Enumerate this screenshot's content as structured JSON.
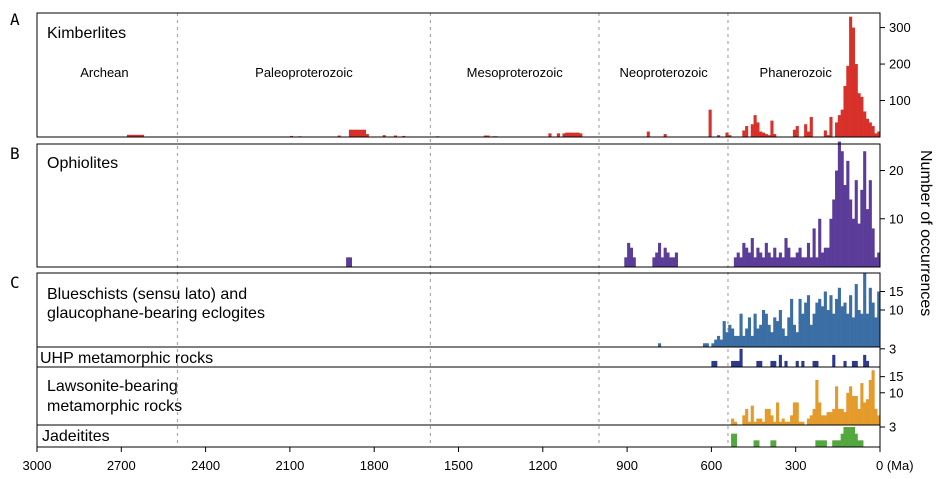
{
  "chart_data": {
    "type": "bar",
    "x_axis": {
      "ticks": [
        3000,
        2700,
        2400,
        2100,
        1800,
        1500,
        1200,
        900,
        600,
        300,
        0
      ],
      "tick_labels": [
        "3000",
        "2700",
        "2400",
        "2100",
        "1800",
        "1500",
        "1200",
        "900",
        "600",
        "300",
        "0 (Ma)"
      ],
      "unit": "Ma",
      "xlim": [
        3000,
        0
      ],
      "reversed": true
    },
    "y_axis_label": "Number of occurrences",
    "era_boundaries_Ma": [
      2500,
      1600,
      1000,
      541
    ],
    "eras": [
      {
        "label": "Archean",
        "x": 2760
      },
      {
        "label": "Paleoproterozoic",
        "x": 2050
      },
      {
        "label": "Mesoproterozoic",
        "x": 1300
      },
      {
        "label": "Neoproterozoic",
        "x": 770
      },
      {
        "label": "Phanerozoic",
        "x": 300
      }
    ],
    "panels": [
      {
        "id": "A",
        "title": "Kimberlites",
        "color": "#d7312a",
        "ylim": [
          0,
          340
        ],
        "yticks": [
          100,
          200,
          300
        ],
        "bin_width": 10,
        "series": [
          {
            "x": [
              2675,
              2665,
              2655,
              2645,
              2635,
              2625,
              2095,
              2065,
              1925,
              1885,
              1875,
              1865,
              1855,
              1845,
              1835,
              1825,
              1765,
              1725,
              1695,
              1575,
              1405,
              1395,
              1375,
              1365,
              1175,
              1145,
              1125,
              1115,
              1105,
              1095,
              1085,
              1075,
              1065,
              825,
              765,
              605,
              575,
              545,
              535,
              485,
              475,
              455,
              445,
              435,
              425,
              415,
              405,
              395,
              385,
              375,
              305,
              295,
              265,
              255,
              245,
              195,
              185,
              175,
              155,
              145,
              135,
              125,
              115,
              105,
              95,
              85,
              75,
              65,
              55,
              45,
              35,
              25,
              15,
              5
            ],
            "values": [
              6,
              6,
              6,
              6,
              6,
              6,
              3,
              2,
              4,
              20,
              20,
              20,
              20,
              20,
              20,
              8,
              5,
              4,
              3,
              2,
              4,
              4,
              2,
              2,
              10,
              10,
              10,
              12,
              12,
              12,
              12,
              12,
              10,
              15,
              8,
              75,
              5,
              12,
              5,
              18,
              30,
              35,
              60,
              40,
              15,
              12,
              8,
              5,
              45,
              8,
              20,
              30,
              35,
              15,
              55,
              18,
              5,
              55,
              40,
              60,
              75,
              140,
              195,
              330,
              300,
              200,
              120,
              110,
              70,
              50,
              40,
              30,
              10,
              15
            ]
          }
        ]
      },
      {
        "id": "B",
        "title": "Ophiolites",
        "color": "#5b3d99",
        "ylim": [
          0,
          25.5
        ],
        "yticks": [
          10,
          20
        ],
        "bin_width": 10,
        "series": [
          {
            "x": [
              1895,
              1885,
              905,
              895,
              885,
              875,
              805,
              795,
              785,
              775,
              765,
              755,
              745,
              735,
              725,
              515,
              505,
              495,
              485,
              475,
              465,
              455,
              445,
              435,
              425,
              415,
              405,
              395,
              385,
              375,
              365,
              355,
              345,
              335,
              325,
              315,
              305,
              295,
              285,
              275,
              265,
              255,
              245,
              235,
              225,
              215,
              205,
              195,
              185,
              175,
              165,
              155,
              145,
              135,
              125,
              115,
              105,
              95,
              85,
              75,
              65,
              55,
              45,
              35,
              25,
              15,
              5
            ],
            "values": [
              2,
              2,
              2,
              5,
              4,
              2,
              2,
              3,
              5,
              2,
              4,
              3,
              2,
              2,
              3,
              2,
              3,
              2,
              5,
              4,
              3,
              6,
              2,
              4,
              3,
              2,
              5,
              3,
              2,
              4,
              2,
              3,
              2,
              6,
              4,
              2,
              2,
              3,
              4,
              2,
              2,
              5,
              2,
              8,
              2,
              10,
              3,
              4,
              4,
              10,
              14,
              20,
              26,
              24,
              17,
              22,
              14,
              10,
              18,
              9,
              16,
              24,
              12,
              18,
              8,
              2,
              3
            ]
          }
        ]
      },
      {
        "id": "C1",
        "title": "Blueschists (sensu lato) and",
        "title2": "glaucophane-bearing eclogites",
        "color": "#3a6ea5",
        "ylim": [
          0,
          20
        ],
        "yticks": [
          10,
          15
        ],
        "bin_width": 10,
        "series": [
          {
            "x": [
              785,
              625,
              615,
              595,
              585,
              575,
              565,
              555,
              545,
              535,
              525,
              515,
              505,
              495,
              485,
              475,
              465,
              455,
              445,
              435,
              425,
              415,
              405,
              395,
              385,
              375,
              365,
              355,
              345,
              335,
              325,
              315,
              305,
              295,
              285,
              275,
              265,
              255,
              245,
              235,
              225,
              215,
              205,
              195,
              185,
              175,
              165,
              155,
              145,
              135,
              125,
              115,
              105,
              95,
              85,
              75,
              65,
              55,
              45,
              35,
              25,
              15,
              5
            ],
            "values": [
              1,
              1,
              1,
              1,
              2,
              3,
              2,
              7,
              4,
              6,
              5,
              3,
              3,
              9,
              3,
              5,
              8,
              3,
              9,
              5,
              6,
              10,
              9,
              6,
              4,
              8,
              7,
              10,
              5,
              3,
              8,
              13,
              6,
              4,
              13,
              9,
              12,
              14,
              6,
              9,
              12,
              13,
              11,
              15,
              10,
              14,
              9,
              13,
              16,
              11,
              12,
              9,
              14,
              8,
              17,
              10,
              9,
              20,
              9,
              16,
              12,
              8,
              15
            ]
          }
        ]
      },
      {
        "id": "C2",
        "title": "UHP metamorphic rocks",
        "color": "#2b3a8c",
        "ylim": [
          0,
          3.3
        ],
        "yticks": [
          3
        ],
        "bin_width": 10,
        "series": [
          {
            "x": [
              595,
              585,
              525,
              515,
              505,
              495,
              435,
              425,
              385,
              375,
              355,
              335,
              295,
              275,
              235,
              225,
              165,
              125,
              95,
              85,
              55,
              45
            ],
            "values": [
              1,
              1,
              1,
              1,
              1,
              3,
              1,
              1,
              1,
              1,
              2,
              1,
              1,
              1,
              1,
              1,
              2,
              1,
              1,
              1,
              2,
              1
            ]
          }
        ]
      },
      {
        "id": "C3",
        "title": "Lawsonite-bearing",
        "title2": "metamorphic rocks",
        "color": "#e59a2c",
        "ylim": [
          0,
          18
        ],
        "yticks": [
          10,
          15
        ],
        "bin_width": 10,
        "series": [
          {
            "x": [
              525,
              515,
              485,
              475,
              465,
              455,
              445,
              435,
              425,
              415,
              405,
              395,
              385,
              375,
              365,
              355,
              345,
              335,
              325,
              315,
              305,
              295,
              285,
              275,
              255,
              245,
              235,
              225,
              215,
              205,
              195,
              185,
              175,
              165,
              155,
              145,
              135,
              125,
              115,
              105,
              95,
              85,
              75,
              65,
              55,
              45,
              35,
              25,
              15,
              5
            ],
            "values": [
              2,
              1,
              3,
              5,
              1,
              6,
              1,
              2,
              2,
              1,
              5,
              5,
              3,
              1,
              7,
              1,
              2,
              1,
              1,
              3,
              7,
              7,
              1,
              1,
              2,
              3,
              5,
              14,
              7,
              3,
              3,
              4,
              4,
              5,
              12,
              5,
              5,
              4,
              10,
              12,
              9,
              9,
              5,
              13,
              7,
              8,
              14,
              17,
              5,
              3
            ]
          }
        ]
      },
      {
        "id": "C4",
        "title": "Jadeitites",
        "color": "#52a83e",
        "ylim": [
          0,
          3.3
        ],
        "yticks": [
          3
        ],
        "bin_width": 10,
        "series": [
          {
            "x": [
              525,
              515,
              445,
              435,
              385,
              375,
              225,
              215,
              205,
              195,
              165,
              155,
              145,
              135,
              125,
              115,
              105,
              95,
              85,
              75,
              65
            ],
            "values": [
              2,
              2,
              1,
              1,
              1,
              1,
              1,
              1,
              1,
              1,
              1,
              1,
              1,
              2,
              3,
              3,
              3,
              3,
              2,
              1,
              1
            ]
          }
        ]
      }
    ],
    "panel_letters": [
      "A",
      "B",
      "C"
    ]
  }
}
